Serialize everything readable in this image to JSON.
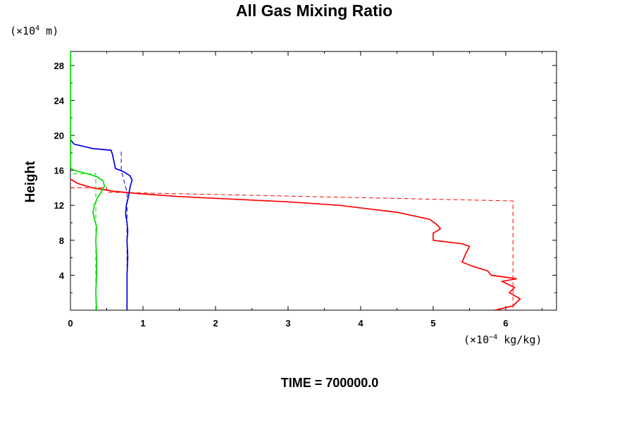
{
  "chart_data": {
    "type": "line",
    "title": "All Gas Mixing Ratio",
    "ylabel": "Height",
    "y_unit_prefix": "(×10",
    "y_unit_exp": "4",
    "y_unit_suffix": " m)",
    "x_unit_prefix": "(×10",
    "x_unit_exp": "−4",
    "x_unit_suffix": " kg/kg)",
    "xlim": [
      0,
      6.7
    ],
    "ylim": [
      0,
      29.6
    ],
    "xticks": [
      "0",
      "1",
      "2",
      "3",
      "4",
      "5",
      "6"
    ],
    "yticks": [
      "4",
      "8",
      "12",
      "16",
      "20",
      "24",
      "28"
    ],
    "footer": "TIME = 700000.0",
    "colors": {
      "red": "#ff0000",
      "blue": "#0000dd",
      "green": "#00dd00"
    },
    "series": [
      {
        "color": "#ff0000",
        "style": "solid",
        "x": [
          5.85,
          6.1,
          6.2,
          6.05,
          6.12,
          5.95,
          6.15,
          5.8,
          5.75,
          5.55,
          5.4,
          5.45,
          5.5,
          5.4,
          5.0,
          5.0,
          5.1,
          5.05,
          4.95,
          4.5,
          3.7,
          3.0,
          2.5,
          2.0,
          1.5,
          1.0,
          0.6,
          0.3,
          0.1,
          0.0
        ],
        "y": [
          0.0,
          0.5,
          1.3,
          2.0,
          2.6,
          3.3,
          3.6,
          4.0,
          4.5,
          5.0,
          5.5,
          6.5,
          7.3,
          7.6,
          8.0,
          8.8,
          9.3,
          9.8,
          10.4,
          11.2,
          12.0,
          12.4,
          12.6,
          12.8,
          13.0,
          13.3,
          13.6,
          14.0,
          14.5,
          15.0
        ]
      },
      {
        "color": "#ff0000",
        "style": "dashed",
        "x": [
          0.0,
          0.5,
          0.5,
          6.1,
          6.1
        ],
        "y": [
          14.0,
          14.0,
          13.5,
          12.5,
          0.0
        ]
      },
      {
        "color": "#0000dd",
        "style": "solid",
        "x": [
          0.78,
          0.78,
          0.78,
          0.79,
          0.78,
          0.79,
          0.78,
          0.76,
          0.77,
          0.8,
          0.82,
          0.85,
          0.82,
          0.72,
          0.62,
          0.6,
          0.58,
          0.56,
          0.3,
          0.05,
          0.0
        ],
        "y": [
          0.0,
          2.0,
          4.0,
          6.0,
          8.0,
          9.0,
          10.0,
          11.0,
          12.0,
          13.0,
          14.0,
          14.9,
          15.4,
          15.9,
          16.2,
          17.0,
          17.8,
          18.3,
          18.5,
          19.0,
          19.5
        ]
      },
      {
        "color": "#0000dd",
        "style": "dashed",
        "x": [
          0.78,
          0.78,
          0.7,
          0.7
        ],
        "y": [
          0.0,
          13.5,
          16.0,
          18.2
        ]
      },
      {
        "color": "#00dd00",
        "style": "solid",
        "x": [
          0.36,
          0.35,
          0.36,
          0.36,
          0.35,
          0.36,
          0.33,
          0.31,
          0.33,
          0.37,
          0.4,
          0.43,
          0.47,
          0.45,
          0.38,
          0.28,
          0.15,
          0.05,
          0.0,
          0.0
        ],
        "y": [
          0.0,
          2.0,
          4.0,
          6.0,
          8.0,
          9.5,
          10.5,
          11.2,
          12.0,
          12.8,
          13.2,
          13.6,
          14.2,
          14.8,
          15.2,
          15.5,
          15.8,
          16.0,
          16.3,
          29.6
        ]
      },
      {
        "color": "#00dd00",
        "style": "dashed",
        "x": [
          0.35,
          0.35,
          0.35,
          0.0
        ],
        "y": [
          0.0,
          13.0,
          15.6,
          15.6
        ]
      }
    ]
  }
}
